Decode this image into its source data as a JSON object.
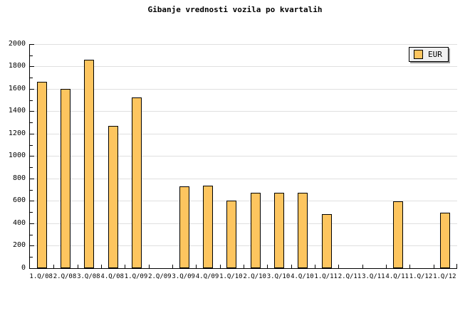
{
  "chart_data": {
    "type": "bar",
    "title": "Gibanje vrednosti vozila po kvartalih",
    "categories": [
      "1.Q/08",
      "2.Q/08",
      "3.Q/08",
      "4.Q/08",
      "1.Q/09",
      "2.Q/09",
      "3.Q/09",
      "4.Q/09",
      "1.Q/10",
      "2.Q/10",
      "3.Q/10",
      "4.Q/10",
      "1.Q/11",
      "2.Q/11",
      "3.Q/11",
      "4.Q/11",
      "1.Q/12",
      "1.Q/12"
    ],
    "series": [
      {
        "name": "EUR",
        "values": [
          1650,
          1590,
          1845,
          1255,
          1510,
          0,
          720,
          725,
          590,
          660,
          660,
          660,
          470,
          0,
          0,
          585,
          0,
          485
        ]
      }
    ],
    "xlabel": "",
    "ylabel": "",
    "ylim": [
      0,
      2000
    ],
    "ytick_step": 200,
    "ytick_minor_step": 100,
    "ytick_labels": [
      "0",
      "200",
      "400",
      "600",
      "800",
      "1000",
      "1200",
      "1400",
      "1600",
      "1800",
      "2000"
    ],
    "grid": "horizontal-major",
    "legend": {
      "label": "EUR",
      "position": "top-right"
    },
    "colors": {
      "bar_fill": "#FDC55F",
      "bar_border": "#000000",
      "grid": "#E0E0E0",
      "axis": "#000000",
      "legend_bg": "#F0F0F0",
      "legend_shadow": "#999999",
      "background": "#FFFFFF",
      "text": "#000000"
    }
  }
}
